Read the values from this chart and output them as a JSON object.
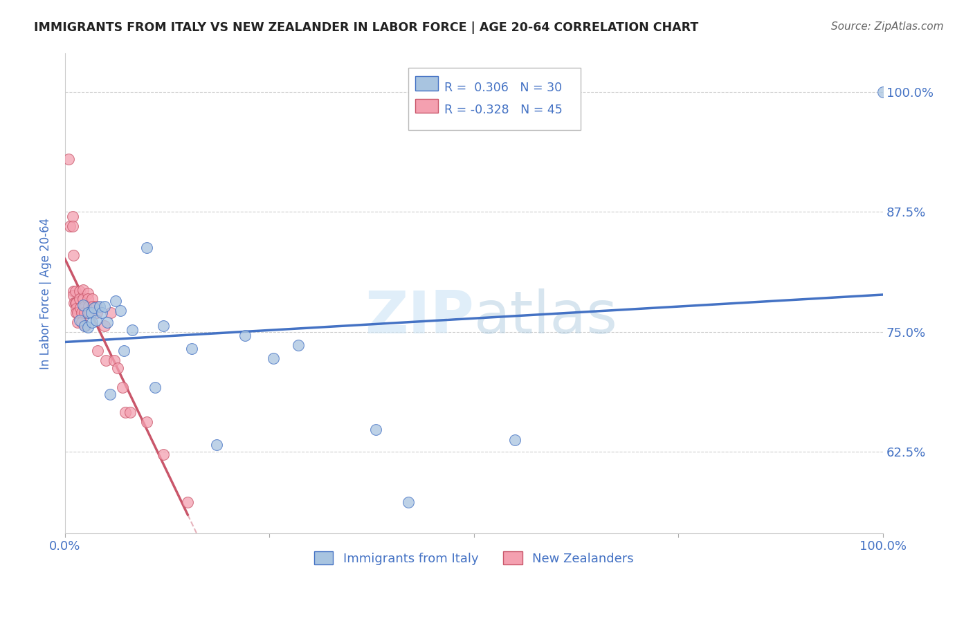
{
  "title": "IMMIGRANTS FROM ITALY VS NEW ZEALANDER IN LABOR FORCE | AGE 20-64 CORRELATION CHART",
  "source": "Source: ZipAtlas.com",
  "ylabel": "In Labor Force | Age 20-64",
  "r_italy": 0.306,
  "n_italy": 30,
  "r_nz": -0.328,
  "n_nz": 45,
  "italy_color": "#a8c4e0",
  "nz_color": "#f4a0b0",
  "italy_line_color": "#4472c4",
  "nz_line_color": "#c9566a",
  "background_color": "#ffffff",
  "grid_color": "#cccccc",
  "title_color": "#222222",
  "axis_label_color": "#4472c4",
  "xlim": [
    0.0,
    1.0
  ],
  "ylim": [
    0.54,
    1.04
  ],
  "ytick_vals": [
    0.625,
    0.75,
    0.875,
    1.0
  ],
  "ytick_labels": [
    "62.5%",
    "75.0%",
    "87.5%",
    "100.0%"
  ],
  "italy_x": [
    0.018,
    0.022,
    0.024,
    0.028,
    0.028,
    0.032,
    0.033,
    0.036,
    0.038,
    0.042,
    0.045,
    0.048,
    0.052,
    0.055,
    0.062,
    0.068,
    0.072,
    0.082,
    0.1,
    0.11,
    0.12,
    0.155,
    0.185,
    0.22,
    0.255,
    0.285,
    0.38,
    0.42,
    0.55,
    1.0
  ],
  "italy_y": [
    0.762,
    0.778,
    0.756,
    0.77,
    0.755,
    0.77,
    0.76,
    0.775,
    0.762,
    0.776,
    0.77,
    0.776,
    0.76,
    0.685,
    0.782,
    0.772,
    0.73,
    0.752,
    0.838,
    0.692,
    0.756,
    0.732,
    0.632,
    0.746,
    0.722,
    0.736,
    0.648,
    0.572,
    0.637,
    1.0
  ],
  "nz_x": [
    0.004,
    0.006,
    0.009,
    0.009,
    0.01,
    0.01,
    0.01,
    0.011,
    0.013,
    0.013,
    0.014,
    0.014,
    0.014,
    0.015,
    0.015,
    0.018,
    0.018,
    0.019,
    0.02,
    0.02,
    0.022,
    0.022,
    0.024,
    0.024,
    0.025,
    0.028,
    0.028,
    0.029,
    0.03,
    0.033,
    0.034,
    0.038,
    0.039,
    0.04,
    0.048,
    0.05,
    0.056,
    0.06,
    0.064,
    0.07,
    0.074,
    0.08,
    0.1,
    0.12,
    0.15
  ],
  "nz_y": [
    0.93,
    0.86,
    0.87,
    0.86,
    0.83,
    0.792,
    0.788,
    0.78,
    0.792,
    0.78,
    0.78,
    0.774,
    0.77,
    0.77,
    0.76,
    0.792,
    0.784,
    0.775,
    0.77,
    0.76,
    0.794,
    0.784,
    0.776,
    0.77,
    0.756,
    0.79,
    0.784,
    0.776,
    0.77,
    0.784,
    0.776,
    0.776,
    0.77,
    0.73,
    0.756,
    0.72,
    0.77,
    0.72,
    0.712,
    0.692,
    0.666,
    0.666,
    0.656,
    0.622,
    0.572
  ]
}
